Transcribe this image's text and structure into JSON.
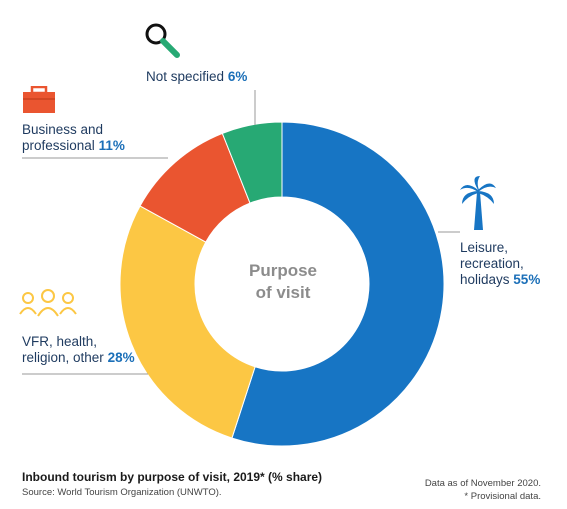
{
  "chart_data": {
    "type": "pie",
    "donut": true,
    "center_label": [
      "Purpose",
      "of visit"
    ],
    "slices": [
      {
        "name": "Leisure, recreation, holidays",
        "value": 55,
        "color": "#1775c4",
        "label_lines": [
          "Leisure,",
          "recreation,",
          "holidays"
        ],
        "icon": "palm-tree-icon"
      },
      {
        "name": "VFR, health, religion, other",
        "value": 28,
        "color": "#fcc744",
        "label_lines": [
          "VFR, health,",
          "religion, other"
        ],
        "icon": "people-group-icon"
      },
      {
        "name": "Business and professional",
        "value": 11,
        "color": "#ea5530",
        "label_lines": [
          "Business and",
          "professional"
        ],
        "icon": "briefcase-icon"
      },
      {
        "name": "Not specified",
        "value": 6,
        "color": "#27a974",
        "label_lines": [
          "Not specified"
        ],
        "icon": "magnifier-icon"
      }
    ],
    "title": "Inbound tourism by purpose of visit, 2019* (% share)",
    "source": "Source: World Tourism Organization (UNWTO).",
    "note_lines": [
      "Data as of November 2020.",
      "* Provisional data."
    ]
  }
}
